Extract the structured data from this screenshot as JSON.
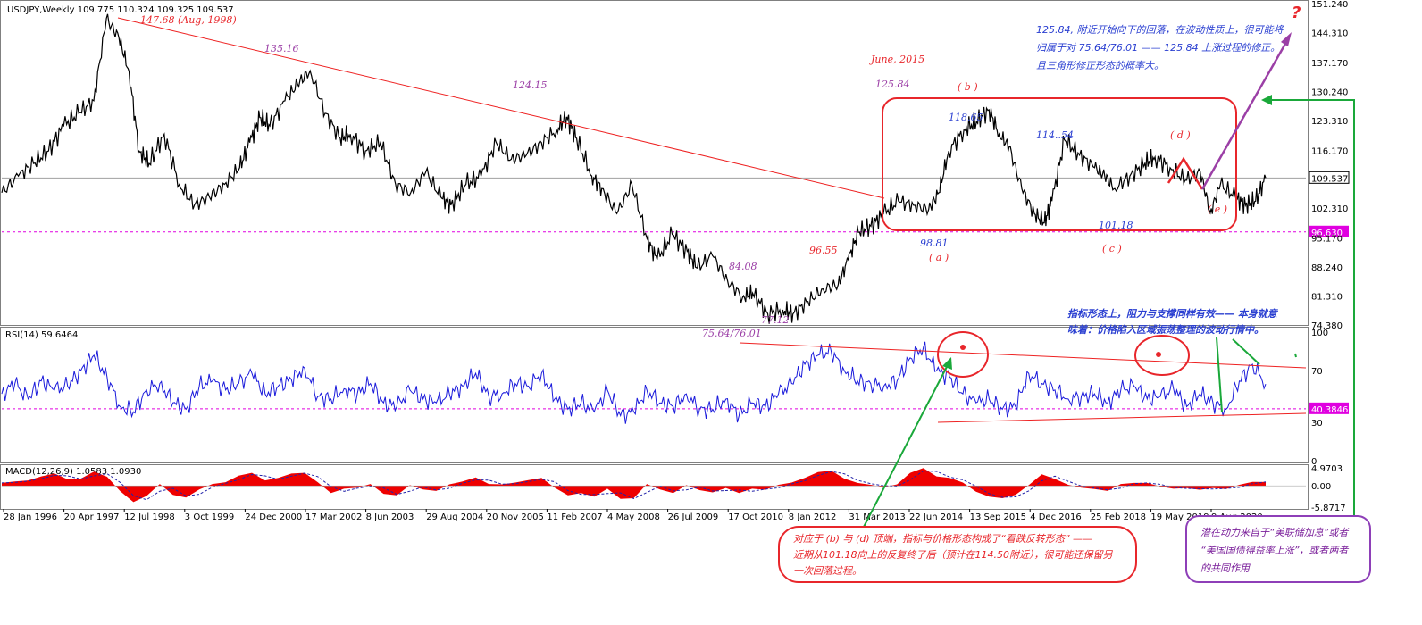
{
  "colors": {
    "price": "#000000",
    "rsi": "#1a1adb",
    "macd_hist": "#ee0000",
    "trend_red": "#ee2222",
    "level": "#e000e0",
    "green": "#1aa83a",
    "purple": "#8e3fb8",
    "grid": "#c0c0c0"
  },
  "chart_data": [
    {
      "type": "line",
      "id": "price",
      "title": "USDJPY,Weekly",
      "ohlc_text": "109.775 110.324 109.325 109.537",
      "y_ticks": [
        "151.240",
        "144.310",
        "137.170",
        "130.240",
        "123.310",
        "116.170",
        "109.537",
        "102.310",
        "96.630",
        "95.170",
        "88.240",
        "81.310",
        "74.380"
      ],
      "ylim": [
        74.38,
        151.24
      ],
      "current_price": 109.537,
      "level_line": 96.63,
      "x_labels": [
        "28 Jan 1996",
        "20 Apr 1997",
        "12 Jul 1998",
        "3 Oct 1999",
        "24 Dec 2000",
        "17 Mar 2002",
        "8 Jun 2003",
        "29 Aug 2004",
        "20 Nov 2005",
        "11 Feb 2007",
        "4 May 2008",
        "26 Jul 2009",
        "17 Oct 2010",
        "8 Jan 2012",
        "31 Mar 2013",
        "22 Jun 2014",
        "13 Sep 2015",
        "4 Dec 2016",
        "25 Feb 2018",
        "19 May 2019",
        "9 Aug 2020"
      ],
      "xlim": [
        1996.07,
        2022.0
      ],
      "x": [
        1996.07,
        1996.4,
        1996.7,
        1997.0,
        1997.3,
        1997.6,
        1997.9,
        1998.15,
        1998.4,
        1998.6,
        1998.8,
        1999.0,
        1999.3,
        1999.6,
        1999.9,
        2000.2,
        2000.5,
        2000.8,
        2001.0,
        2001.2,
        2001.4,
        2001.7,
        2001.95,
        2002.2,
        2002.5,
        2002.8,
        2003.0,
        2003.3,
        2003.6,
        2003.9,
        2004.2,
        2004.5,
        2004.8,
        2005.0,
        2005.3,
        2005.6,
        2005.9,
        2006.2,
        2006.5,
        2006.8,
        2007.1,
        2007.3,
        2007.5,
        2007.8,
        2008.0,
        2008.3,
        2008.6,
        2008.9,
        2009.1,
        2009.4,
        2009.7,
        2009.9,
        2010.2,
        2010.5,
        2010.8,
        2011.0,
        2011.3,
        2011.6,
        2011.8,
        2012.1,
        2012.4,
        2012.7,
        2012.9,
        2013.1,
        2013.35,
        2013.6,
        2013.9,
        2014.2,
        2014.5,
        2014.7,
        2014.9,
        2015.2,
        2015.45,
        2015.7,
        2015.9,
        2016.1,
        2016.35,
        2016.6,
        2016.8,
        2016.95,
        2017.2,
        2017.5,
        2017.8,
        2018.0,
        2018.2,
        2018.5,
        2018.8,
        2019.0,
        2019.3,
        2019.6,
        2019.9,
        2020.1,
        2020.3,
        2020.6,
        2020.8,
        2021.0,
        2021.2
      ],
      "values": [
        106,
        110,
        113,
        116,
        122,
        125,
        128,
        147.68,
        143,
        135,
        116,
        113,
        120,
        108,
        103,
        105,
        108,
        112,
        118,
        124,
        122,
        128,
        132,
        135.16,
        125,
        119,
        120,
        116,
        118,
        108,
        106,
        111,
        105,
        103,
        108,
        110,
        118,
        114,
        115,
        118,
        121,
        124.15,
        119,
        110,
        107,
        101,
        108,
        95,
        90,
        96,
        92,
        88,
        91,
        85,
        81,
        82,
        77.12,
        78,
        77,
        80,
        83,
        84,
        90,
        96.55,
        98,
        101,
        104,
        103,
        102,
        106,
        116,
        121,
        123,
        125.84,
        120,
        117,
        107,
        101,
        98.81,
        104,
        118.65,
        115,
        112,
        110,
        107,
        110,
        113,
        114.54,
        112,
        109,
        111,
        101.18,
        108,
        105,
        103,
        104,
        109.54
      ]
    },
    {
      "type": "line",
      "id": "rsi",
      "title": "RSI(14)",
      "current_text": "59.6464",
      "y_ticks": [
        "100",
        "70",
        "40.3846",
        "30",
        "0"
      ],
      "ylim": [
        0,
        100
      ],
      "level_line": 40.3846,
      "note_x_end": 2021.2,
      "values": [
        52,
        60,
        48,
        62,
        55,
        58,
        70,
        82,
        65,
        42,
        38,
        55,
        60,
        45,
        40,
        58,
        62,
        55,
        60,
        68,
        52,
        58,
        63,
        72,
        50,
        48,
        56,
        52,
        60,
        45,
        42,
        55,
        48,
        45,
        52,
        58,
        68,
        50,
        52,
        60,
        58,
        68,
        48,
        40,
        45,
        38,
        55,
        35,
        38,
        55,
        45,
        42,
        52,
        40,
        40,
        48,
        35,
        45,
        42,
        52,
        60,
        75,
        82,
        85,
        70,
        62,
        60,
        58,
        62,
        80,
        88,
        70,
        65,
        52,
        45,
        48,
        40,
        42,
        68,
        60,
        55,
        48,
        50,
        52,
        45,
        55,
        58,
        48,
        50,
        56,
        42,
        52,
        45,
        40,
        62,
        75,
        59.6
      ]
    },
    {
      "type": "bar",
      "id": "macd",
      "title": "MACD(12,26,9)",
      "current_text": "1.0583 1.0930",
      "y_ticks": [
        "4.9703",
        "0.00",
        "-5.8717"
      ],
      "ylim": [
        -5.8717,
        4.9703
      ],
      "values": [
        0.8,
        1.2,
        1.5,
        2.6,
        3.4,
        1.8,
        2.0,
        3.9,
        2.5,
        -1.5,
        -4.5,
        -2.8,
        0.5,
        -2.5,
        -3.2,
        -1.0,
        0.5,
        1.0,
        2.8,
        3.6,
        1.5,
        2.2,
        3.4,
        3.6,
        1.0,
        -2.0,
        -0.8,
        -0.5,
        0.5,
        -2.2,
        -2.6,
        0.2,
        -1.0,
        -1.4,
        0.4,
        1.2,
        2.3,
        0.5,
        0.4,
        0.9,
        1.6,
        2.2,
        -0.5,
        -2.6,
        -2.0,
        -3.0,
        -0.8,
        -3.6,
        -3.4,
        0.5,
        -1.0,
        -2.0,
        0.2,
        -1.2,
        -1.8,
        -0.6,
        -2.0,
        -0.8,
        -1.1,
        0.3,
        0.9,
        2.2,
        3.8,
        4.2,
        2.0,
        0.8,
        0.3,
        -0.4,
        0.4,
        3.6,
        4.9,
        2.6,
        2.2,
        0.9,
        -1.6,
        -3.0,
        -3.4,
        -2.5,
        0.2,
        3.2,
        1.9,
        0.3,
        -0.5,
        -0.9,
        -1.4,
        0.5,
        0.8,
        0.8,
        -0.2,
        -0.8,
        -0.6,
        -1.1,
        -0.6,
        -0.9,
        0.3,
        1.1,
        1.06
      ]
    }
  ],
  "wave_labels": {
    "high_1998": "147.68 (Aug, 1998)",
    "p135": "135.16",
    "p124": "124.15",
    "june2015": "June, 2015",
    "p125": "125.84",
    "b": "( b )",
    "p118": "118.65",
    "p114": "114..54",
    "d": "( d )",
    "e": "( e )",
    "p101": "101.18",
    "c": "( c )",
    "p98": "98.81",
    "a": "( a )",
    "p96": "96.55",
    "p84": "84.08",
    "p77": "77.12",
    "p75": "75.64/76.01",
    "question": "?"
  },
  "notes": {
    "top_right": [
      "125.84, 附近开始向下的回落，在波动性质上，很可能将",
      "归属于对 75.64/76.01 —— 125.84 上涨过程的修正。",
      "且三角形修正形态的概率大。"
    ],
    "rsi_note": [
      "指标形态上，阻力与支撑同样有效—— 本身就意",
      "味着：价格陷入区域振荡整理的波动行情中。"
    ],
    "bottom_red": [
      "对应于 (b) 与 (d) 顶端，指标与价格形态构成了“看跌反转形态” ——",
      "近期从101.18向上的反复终了后（预计在114.50附近），很可能还保留另",
      "一次回落过程。"
    ],
    "bottom_purple": [
      "潜在动力来自于“美联储加息”或者",
      "“美国国债得益率上涨”，或者两者",
      "的共同作用"
    ]
  }
}
